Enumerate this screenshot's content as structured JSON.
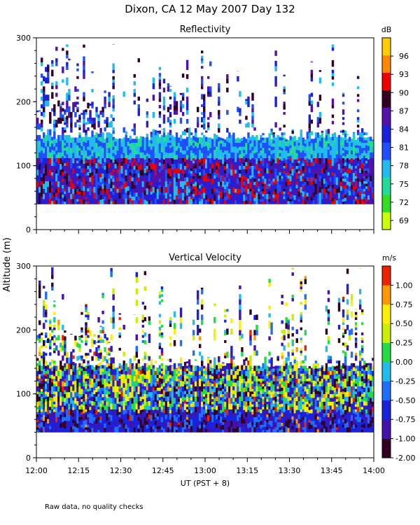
{
  "figure_title": "Dixon, CA 12 May 2007  Day 132",
  "y_axis_label": "Altitude (m)",
  "x_axis_label": "UT  (PST + 8)",
  "footnote": "Raw data, no quality checks",
  "chart_data": [
    {
      "type": "heatmap",
      "title": "Reflectivity",
      "ylabel": "Altitude (m)",
      "colorbar_unit": "dB",
      "x_ticks": [
        "12:00",
        "12:15",
        "12:30",
        "12:45",
        "13:00",
        "13:15",
        "13:30",
        "13:45",
        "14:00"
      ],
      "y_ticks": [
        0,
        100,
        200,
        300
      ],
      "xlim": [
        "12:00",
        "14:00"
      ],
      "ylim": [
        0,
        300
      ],
      "colorbar_ticks": [
        69,
        72,
        75,
        78,
        81,
        84,
        87,
        90,
        93,
        96
      ],
      "colorbar_range": [
        67.5,
        99
      ],
      "colors": [
        "#ccff00",
        "#33dd22",
        "#22dd99",
        "#22bbee",
        "#1f4fff",
        "#1a22dd",
        "#5511aa",
        "#330022",
        "#ee0000",
        "#ff8800",
        "#ffcc00"
      ],
      "data_altitude_range": [
        40,
        300
      ]
    },
    {
      "type": "heatmap",
      "title": "Vertical Velocity",
      "ylabel": "Altitude (m)",
      "colorbar_unit": "m/s",
      "x_ticks": [
        "12:00",
        "12:15",
        "12:30",
        "12:45",
        "13:00",
        "13:15",
        "13:30",
        "13:45",
        "14:00"
      ],
      "x_axis_label": "UT  (PST + 8)",
      "y_ticks": [
        0,
        100,
        200,
        300
      ],
      "xlim": [
        "12:00",
        "14:00"
      ],
      "ylim": [
        0,
        300
      ],
      "colorbar_ticks": [
        "1.00",
        "0.75",
        "0.50",
        "0.25",
        "0.00",
        "-0.25",
        "-0.50",
        "-0.75",
        "-1.00",
        "-2.00"
      ],
      "colorbar_range": [
        -2.0,
        1.25
      ],
      "colors": [
        "#330022",
        "#4411aa",
        "#1a22dd",
        "#1f6fff",
        "#22bbee",
        "#22dd44",
        "#ccee00",
        "#ffee00",
        "#ff9900",
        "#ee2200"
      ],
      "data_altitude_range": [
        40,
        300
      ]
    }
  ]
}
